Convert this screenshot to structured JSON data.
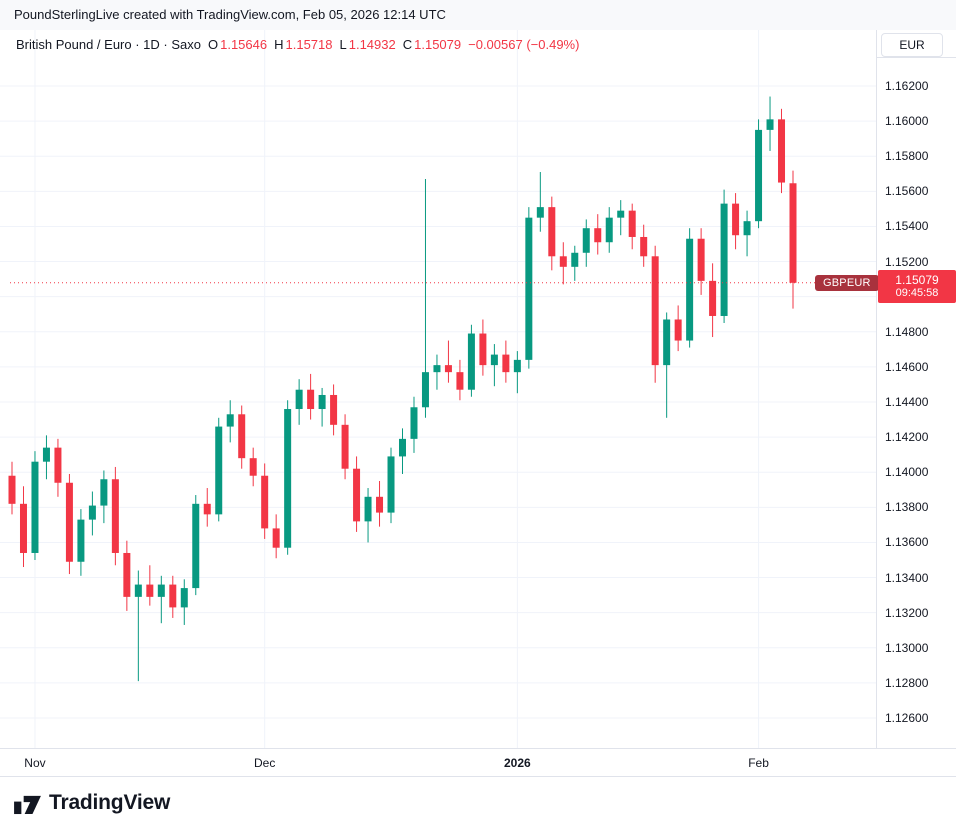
{
  "attribution": "PoundSterlingLive created with TradingView.com, Feb 05, 2026 12:14 UTC",
  "legend": {
    "symbol_title": "British Pound / Euro · 1D · Saxo",
    "ohlc": [
      {
        "label": "O",
        "value": "1.15646"
      },
      {
        "label": "H",
        "value": "1.15718"
      },
      {
        "label": "L",
        "value": "1.14932"
      },
      {
        "label": "C",
        "value": "1.15079"
      }
    ],
    "change": "−0.00567 (−0.49%)"
  },
  "currency_button": "EUR",
  "price_label": {
    "symbol_badge": "GBPEUR",
    "price": "1.15079",
    "countdown": "09:45:58"
  },
  "footer": {
    "brand": "TradingView"
  },
  "colors": {
    "up": "#089981",
    "down": "#f23645",
    "grid": "#f0f3fa",
    "axis_text": "#131722",
    "badge": "#a8323d"
  },
  "chart_data": {
    "type": "candlestick",
    "title": "British Pound / Euro",
    "symbol": "GBPEUR",
    "interval": "1D",
    "exchange": "Saxo",
    "currency": "EUR",
    "current_price": 1.15079,
    "countdown": "09:45:58",
    "last_bar": {
      "open": 1.15646,
      "high": 1.15718,
      "low": 1.14932,
      "close": 1.15079,
      "change": -0.00567,
      "change_pct": -0.49
    },
    "y_ticks": [
      "1.16200",
      "1.16000",
      "1.15800",
      "1.15600",
      "1.15400",
      "1.15200",
      "1.15000",
      "1.14800",
      "1.14600",
      "1.14400",
      "1.14200",
      "1.14000",
      "1.13800",
      "1.13600",
      "1.13400",
      "1.13200",
      "1.13000",
      "1.12800",
      "1.12600"
    ],
    "x_ticks": [
      {
        "label": "Nov",
        "index": 2,
        "bold": false
      },
      {
        "label": "Dec",
        "index": 22,
        "bold": false
      },
      {
        "label": "2026",
        "index": 44,
        "bold": true
      },
      {
        "label": "Feb",
        "index": 65,
        "bold": false
      }
    ],
    "columns": [
      "date",
      "open",
      "high",
      "low",
      "close"
    ],
    "candles": [
      [
        "2025-10-30",
        1.1398,
        1.1406,
        1.1376,
        1.1382
      ],
      [
        "2025-10-31",
        1.1382,
        1.1392,
        1.1346,
        1.1354
      ],
      [
        "2025-11-03",
        1.1354,
        1.1412,
        1.135,
        1.1406
      ],
      [
        "2025-11-04",
        1.1406,
        1.1421,
        1.1396,
        1.1414
      ],
      [
        "2025-11-05",
        1.1414,
        1.1419,
        1.1386,
        1.1394
      ],
      [
        "2025-11-06",
        1.1394,
        1.1399,
        1.1342,
        1.1349
      ],
      [
        "2025-11-07",
        1.1349,
        1.1379,
        1.1341,
        1.1373
      ],
      [
        "2025-11-10",
        1.1373,
        1.1389,
        1.1364,
        1.1381
      ],
      [
        "2025-11-11",
        1.1381,
        1.1401,
        1.1371,
        1.1396
      ],
      [
        "2025-11-12",
        1.1396,
        1.1403,
        1.1347,
        1.1354
      ],
      [
        "2025-11-13",
        1.1354,
        1.1361,
        1.1321,
        1.1329
      ],
      [
        "2025-11-14",
        1.1329,
        1.1344,
        1.1281,
        1.1336
      ],
      [
        "2025-11-17",
        1.1336,
        1.1347,
        1.1324,
        1.1329
      ],
      [
        "2025-11-18",
        1.1329,
        1.1341,
        1.1314,
        1.1336
      ],
      [
        "2025-11-19",
        1.1336,
        1.1341,
        1.1317,
        1.1323
      ],
      [
        "2025-11-20",
        1.1323,
        1.1339,
        1.1313,
        1.1334
      ],
      [
        "2025-11-21",
        1.1334,
        1.1387,
        1.133,
        1.1382
      ],
      [
        "2025-11-24",
        1.1382,
        1.1391,
        1.1369,
        1.1376
      ],
      [
        "2025-11-25",
        1.1376,
        1.1431,
        1.1372,
        1.1426
      ],
      [
        "2025-11-26",
        1.1426,
        1.1441,
        1.1417,
        1.1433
      ],
      [
        "2025-11-27",
        1.1433,
        1.1438,
        1.1402,
        1.1408
      ],
      [
        "2025-11-28",
        1.1408,
        1.1414,
        1.1392,
        1.1398
      ],
      [
        "2025-12-01",
        1.1398,
        1.1405,
        1.1362,
        1.1368
      ],
      [
        "2025-12-02",
        1.1368,
        1.1376,
        1.1351,
        1.1357
      ],
      [
        "2025-12-03",
        1.1357,
        1.1441,
        1.1353,
        1.1436
      ],
      [
        "2025-12-04",
        1.1436,
        1.1453,
        1.1427,
        1.1447
      ],
      [
        "2025-12-05",
        1.1447,
        1.1456,
        1.143,
        1.1436
      ],
      [
        "2025-12-08",
        1.1436,
        1.1448,
        1.1426,
        1.1444
      ],
      [
        "2025-12-09",
        1.1444,
        1.145,
        1.1421,
        1.1427
      ],
      [
        "2025-12-10",
        1.1427,
        1.1433,
        1.1396,
        1.1402
      ],
      [
        "2025-12-11",
        1.1402,
        1.1409,
        1.1366,
        1.1372
      ],
      [
        "2025-12-12",
        1.1372,
        1.1391,
        1.136,
        1.1386
      ],
      [
        "2025-12-15",
        1.1386,
        1.1395,
        1.1369,
        1.1377
      ],
      [
        "2025-12-16",
        1.1377,
        1.1414,
        1.1371,
        1.1409
      ],
      [
        "2025-12-17",
        1.1409,
        1.1425,
        1.1399,
        1.1419
      ],
      [
        "2025-12-18",
        1.1419,
        1.1443,
        1.1411,
        1.1437
      ],
      [
        "2025-12-19",
        1.1437,
        1.1567,
        1.1431,
        1.1457
      ],
      [
        "2025-12-22",
        1.1457,
        1.1467,
        1.1447,
        1.1461
      ],
      [
        "2025-12-23",
        1.1461,
        1.1475,
        1.1451,
        1.1457
      ],
      [
        "2025-12-24",
        1.1457,
        1.1464,
        1.1441,
        1.1447
      ],
      [
        "2025-12-26",
        1.1447,
        1.1484,
        1.1443,
        1.1479
      ],
      [
        "2025-12-29",
        1.1479,
        1.1487,
        1.1455,
        1.1461
      ],
      [
        "2025-12-30",
        1.1461,
        1.1473,
        1.1449,
        1.1467
      ],
      [
        "2025-12-31",
        1.1467,
        1.1475,
        1.1451,
        1.1457
      ],
      [
        "2026-01-02",
        1.1457,
        1.1469,
        1.1445,
        1.1464
      ],
      [
        "2026-01-05",
        1.1464,
        1.1551,
        1.1459,
        1.1545
      ],
      [
        "2026-01-06",
        1.1545,
        1.1571,
        1.1537,
        1.1551
      ],
      [
        "2026-01-07",
        1.1551,
        1.1557,
        1.1515,
        1.1523
      ],
      [
        "2026-01-08",
        1.1523,
        1.1531,
        1.1507,
        1.1517
      ],
      [
        "2026-01-09",
        1.1517,
        1.1529,
        1.1509,
        1.1525
      ],
      [
        "2026-01-12",
        1.1525,
        1.1544,
        1.1517,
        1.1539
      ],
      [
        "2026-01-13",
        1.1539,
        1.1547,
        1.1524,
        1.1531
      ],
      [
        "2026-01-14",
        1.1531,
        1.1551,
        1.1525,
        1.1545
      ],
      [
        "2026-01-15",
        1.1545,
        1.1555,
        1.1535,
        1.1549
      ],
      [
        "2026-01-16",
        1.1549,
        1.1553,
        1.1527,
        1.1534
      ],
      [
        "2026-01-19",
        1.1534,
        1.1541,
        1.1517,
        1.1523
      ],
      [
        "2026-01-20",
        1.1523,
        1.1529,
        1.1451,
        1.1461
      ],
      [
        "2026-01-21",
        1.1461,
        1.1491,
        1.1431,
        1.1487
      ],
      [
        "2026-01-22",
        1.1487,
        1.1495,
        1.1469,
        1.1475
      ],
      [
        "2026-01-23",
        1.1475,
        1.1539,
        1.1471,
        1.1533
      ],
      [
        "2026-01-26",
        1.1533,
        1.1539,
        1.1501,
        1.1509
      ],
      [
        "2026-01-27",
        1.1509,
        1.1519,
        1.1477,
        1.1489
      ],
      [
        "2026-01-28",
        1.1489,
        1.1561,
        1.1485,
        1.1553
      ],
      [
        "2026-01-29",
        1.1553,
        1.1559,
        1.1527,
        1.1535
      ],
      [
        "2026-01-30",
        1.1535,
        1.1549,
        1.1523,
        1.1543
      ],
      [
        "2026-02-02",
        1.1543,
        1.1601,
        1.1539,
        1.1595
      ],
      [
        "2026-02-03",
        1.1595,
        1.1614,
        1.1583,
        1.1601
      ],
      [
        "2026-02-04",
        1.1601,
        1.1607,
        1.1559,
        1.1565
      ],
      [
        "2026-02-05",
        1.15646,
        1.15718,
        1.14932,
        1.15079
      ]
    ]
  }
}
